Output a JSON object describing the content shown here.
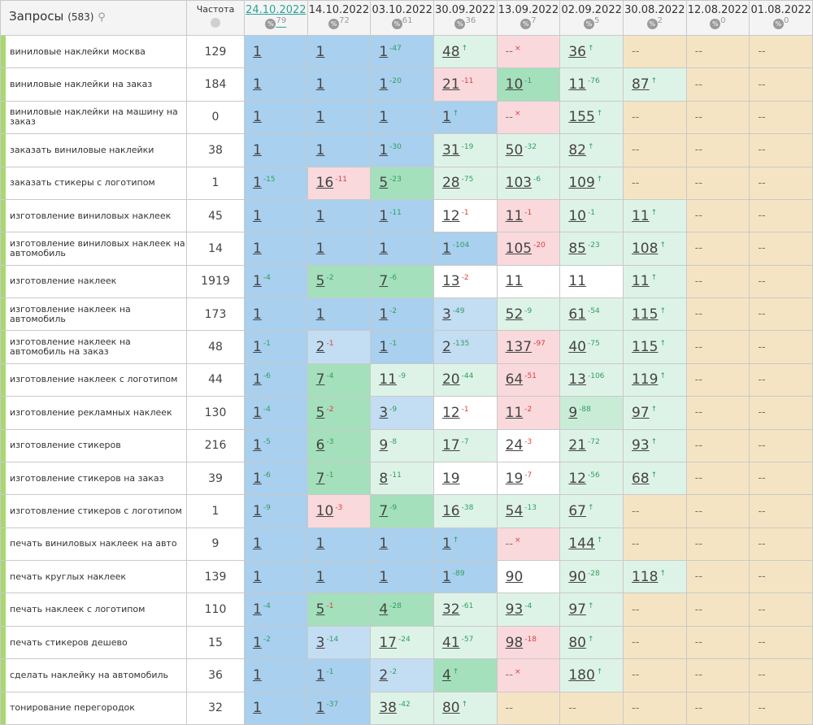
{
  "header": {
    "title": "Запросы",
    "count": "(583)",
    "freq_label": "Частота",
    "dates": [
      {
        "date": "24.10.2022",
        "count": 79
      },
      {
        "date": "14.10.2022",
        "count": 72
      },
      {
        "date": "03.10.2022",
        "count": 61
      },
      {
        "date": "30.09.2022",
        "count": 36
      },
      {
        "date": "13.09.2022",
        "count": 7
      },
      {
        "date": "02.09.2022",
        "count": 5
      },
      {
        "date": "30.08.2022",
        "count": 2
      },
      {
        "date": "12.08.2022",
        "count": 0
      },
      {
        "date": "01.08.2022",
        "count": 0
      }
    ]
  },
  "rows": [
    {
      "query": "виниловые наклейки москва",
      "freq": 129,
      "cells": [
        [
          "1",
          "#a9d0ee"
        ],
        [
          "1",
          "#a9d0ee"
        ],
        [
          "1",
          "#a9d0ee",
          "-47",
          "#2e9e63"
        ],
        [
          "48",
          "#def3e7",
          "↑",
          "#2e9e63"
        ],
        [
          "--",
          "#f9d9dc",
          "×",
          "#e03c3c"
        ],
        [
          "36",
          "#def3e7",
          "↑",
          "#2e9e63"
        ],
        [
          "--",
          "#f5e4c3"
        ],
        [
          "--",
          "#f5e4c3"
        ],
        [
          "--",
          "#f5e4c3"
        ]
      ]
    },
    {
      "query": "виниловые наклейки на заказ",
      "freq": 184,
      "cells": [
        [
          "1",
          "#a9d0ee"
        ],
        [
          "1",
          "#a9d0ee"
        ],
        [
          "1",
          "#a9d0ee",
          "-20",
          "#2e9e63"
        ],
        [
          "21",
          "#f9d9dc",
          "-11",
          "#e03c3c"
        ],
        [
          "10",
          "#a4e0bc",
          "-1",
          "#2e9e63"
        ],
        [
          "11",
          "#def3e7",
          "-76",
          "#2e9e63"
        ],
        [
          "87",
          "#def3e7",
          "↑",
          "#2e9e63"
        ],
        [
          "--",
          "#f5e4c3"
        ],
        [
          "--",
          "#f5e4c3"
        ]
      ]
    },
    {
      "query": "виниловые наклейки на машину на заказ",
      "freq": 0,
      "cells": [
        [
          "1",
          "#a9d0ee"
        ],
        [
          "1",
          "#a9d0ee"
        ],
        [
          "1",
          "#a9d0ee"
        ],
        [
          "1",
          "#a9d0ee",
          "↑",
          "#2e9e63"
        ],
        [
          "--",
          "#f9d9dc",
          "×",
          "#e03c3c"
        ],
        [
          "155",
          "#def3e7",
          "↑",
          "#2e9e63"
        ],
        [
          "--",
          "#f5e4c3"
        ],
        [
          "--",
          "#f5e4c3"
        ],
        [
          "--",
          "#f5e4c3"
        ]
      ]
    },
    {
      "query": "заказать виниловые наклейки",
      "freq": 38,
      "cells": [
        [
          "1",
          "#a9d0ee"
        ],
        [
          "1",
          "#a9d0ee"
        ],
        [
          "1",
          "#a9d0ee",
          "-30",
          "#2e9e63"
        ],
        [
          "31",
          "#def3e7",
          "-19",
          "#2e9e63"
        ],
        [
          "50",
          "#def3e7",
          "-32",
          "#2e9e63"
        ],
        [
          "82",
          "#def3e7",
          "↑",
          "#2e9e63"
        ],
        [
          "--",
          "#f5e4c3"
        ],
        [
          "--",
          "#f5e4c3"
        ],
        [
          "--",
          "#f5e4c3"
        ]
      ]
    },
    {
      "query": "заказать стикеры с логотипом",
      "freq": 1,
      "cells": [
        [
          "1",
          "#a9d0ee",
          "-15",
          "#2e9e63"
        ],
        [
          "16",
          "#f9d9dc",
          "-11",
          "#e03c3c"
        ],
        [
          "5",
          "#a4e0bc",
          "-23",
          "#2e9e63"
        ],
        [
          "28",
          "#def3e7",
          "-75",
          "#2e9e63"
        ],
        [
          "103",
          "#def3e7",
          "-6",
          "#2e9e63"
        ],
        [
          "109",
          "#def3e7",
          "↑",
          "#2e9e63"
        ],
        [
          "--",
          "#f5e4c3"
        ],
        [
          "--",
          "#f5e4c3"
        ],
        [
          "--",
          "#f5e4c3"
        ]
      ]
    },
    {
      "query": "изготовление виниловых наклеек",
      "freq": 45,
      "cells": [
        [
          "1",
          "#a9d0ee"
        ],
        [
          "1",
          "#a9d0ee"
        ],
        [
          "1",
          "#a9d0ee",
          "-11",
          "#2e9e63"
        ],
        [
          "12",
          "#ffffff",
          "-1",
          "#e03c3c"
        ],
        [
          "11",
          "#f9d9dc",
          "-1",
          "#e03c3c"
        ],
        [
          "10",
          "#def3e7",
          "-1",
          "#2e9e63"
        ],
        [
          "11",
          "#def3e7",
          "↑",
          "#2e9e63"
        ],
        [
          "--",
          "#f5e4c3"
        ],
        [
          "--",
          "#f5e4c3"
        ]
      ]
    },
    {
      "query": "изготовление виниловых наклеек на автомобиль",
      "freq": 14,
      "cells": [
        [
          "1",
          "#a9d0ee"
        ],
        [
          "1",
          "#a9d0ee"
        ],
        [
          "1",
          "#a9d0ee"
        ],
        [
          "1",
          "#a9d0ee",
          "-104",
          "#2e9e63"
        ],
        [
          "105",
          "#f9d9dc",
          "-20",
          "#e03c3c"
        ],
        [
          "85",
          "#def3e7",
          "-23",
          "#2e9e63"
        ],
        [
          "108",
          "#def3e7",
          "↑",
          "#2e9e63"
        ],
        [
          "--",
          "#f5e4c3"
        ],
        [
          "--",
          "#f5e4c3"
        ]
      ]
    },
    {
      "query": "изготовление наклеек",
      "freq": 1919,
      "cells": [
        [
          "1",
          "#a9d0ee",
          "-4",
          "#2e9e63"
        ],
        [
          "5",
          "#a4e0bc",
          "-2",
          "#2e9e63"
        ],
        [
          "7",
          "#a4e0bc",
          "-6",
          "#2e9e63"
        ],
        [
          "13",
          "#ffffff",
          "-2",
          "#e03c3c"
        ],
        [
          "11",
          "#ffffff"
        ],
        [
          "11",
          "#ffffff"
        ],
        [
          "11",
          "#def3e7",
          "↑",
          "#2e9e63"
        ],
        [
          "--",
          "#f5e4c3"
        ],
        [
          "--",
          "#f5e4c3"
        ]
      ]
    },
    {
      "query": "изготовление наклеек на автомобиль",
      "freq": 173,
      "cells": [
        [
          "1",
          "#a9d0ee"
        ],
        [
          "1",
          "#a9d0ee"
        ],
        [
          "1",
          "#a9d0ee",
          "-2",
          "#2e9e63"
        ],
        [
          "3",
          "#c3ddf3",
          "-49",
          "#2e9e63"
        ],
        [
          "52",
          "#def3e7",
          "-9",
          "#2e9e63"
        ],
        [
          "61",
          "#def3e7",
          "-54",
          "#2e9e63"
        ],
        [
          "115",
          "#def3e7",
          "↑",
          "#2e9e63"
        ],
        [
          "--",
          "#f5e4c3"
        ],
        [
          "--",
          "#f5e4c3"
        ]
      ]
    },
    {
      "query": "изготовление наклеек на автомобиль на заказ",
      "freq": 48,
      "cells": [
        [
          "1",
          "#a9d0ee",
          "-1",
          "#2e9e63"
        ],
        [
          "2",
          "#c3ddf3",
          "-1",
          "#e03c3c"
        ],
        [
          "1",
          "#a9d0ee",
          "-1",
          "#2e9e63"
        ],
        [
          "2",
          "#c3ddf3",
          "-135",
          "#2e9e63"
        ],
        [
          "137",
          "#f9d9dc",
          "-97",
          "#e03c3c"
        ],
        [
          "40",
          "#def3e7",
          "-75",
          "#2e9e63"
        ],
        [
          "115",
          "#def3e7",
          "↑",
          "#2e9e63"
        ],
        [
          "--",
          "#f5e4c3"
        ],
        [
          "--",
          "#f5e4c3"
        ]
      ]
    },
    {
      "query": "изготовление наклеек с логотипом",
      "freq": 44,
      "cells": [
        [
          "1",
          "#a9d0ee",
          "-6",
          "#2e9e63"
        ],
        [
          "7",
          "#a4e0bc",
          "-4",
          "#2e9e63"
        ],
        [
          "11",
          "#def3e7",
          "-9",
          "#2e9e63"
        ],
        [
          "20",
          "#def3e7",
          "-44",
          "#2e9e63"
        ],
        [
          "64",
          "#f9d9dc",
          "-51",
          "#e03c3c"
        ],
        [
          "13",
          "#def3e7",
          "-106",
          "#2e9e63"
        ],
        [
          "119",
          "#def3e7",
          "↑",
          "#2e9e63"
        ],
        [
          "--",
          "#f5e4c3"
        ],
        [
          "--",
          "#f5e4c3"
        ]
      ]
    },
    {
      "query": "изготовление рекламных наклеек",
      "freq": 130,
      "cells": [
        [
          "1",
          "#a9d0ee",
          "-4",
          "#2e9e63"
        ],
        [
          "5",
          "#a4e0bc",
          "-2",
          "#e03c3c"
        ],
        [
          "3",
          "#c3ddf3",
          "-9",
          "#2e9e63"
        ],
        [
          "12",
          "#ffffff",
          "-1",
          "#e03c3c"
        ],
        [
          "11",
          "#f9d9dc",
          "-2",
          "#e03c3c"
        ],
        [
          "9",
          "#c9ecd6",
          "-88",
          "#2e9e63"
        ],
        [
          "97",
          "#def3e7",
          "↑",
          "#2e9e63"
        ],
        [
          "--",
          "#f5e4c3"
        ],
        [
          "--",
          "#f5e4c3"
        ]
      ]
    },
    {
      "query": "изготовление стикеров",
      "freq": 216,
      "cells": [
        [
          "1",
          "#a9d0ee",
          "-5",
          "#2e9e63"
        ],
        [
          "6",
          "#a4e0bc",
          "-3",
          "#2e9e63"
        ],
        [
          "9",
          "#def3e7",
          "-8",
          "#2e9e63"
        ],
        [
          "17",
          "#def3e7",
          "-7",
          "#2e9e63"
        ],
        [
          "24",
          "#ffffff",
          "-3",
          "#e03c3c"
        ],
        [
          "21",
          "#def3e7",
          "-72",
          "#2e9e63"
        ],
        [
          "93",
          "#def3e7",
          "↑",
          "#2e9e63"
        ],
        [
          "--",
          "#f5e4c3"
        ],
        [
          "--",
          "#f5e4c3"
        ]
      ]
    },
    {
      "query": "изготовление стикеров на заказ",
      "freq": 39,
      "cells": [
        [
          "1",
          "#a9d0ee",
          "-6",
          "#2e9e63"
        ],
        [
          "7",
          "#a4e0bc",
          "-1",
          "#2e9e63"
        ],
        [
          "8",
          "#def3e7",
          "-11",
          "#2e9e63"
        ],
        [
          "19",
          "#ffffff"
        ],
        [
          "19",
          "#ffffff",
          "-7",
          "#e03c3c"
        ],
        [
          "12",
          "#def3e7",
          "-56",
          "#2e9e63"
        ],
        [
          "68",
          "#def3e7",
          "↑",
          "#2e9e63"
        ],
        [
          "--",
          "#f5e4c3"
        ],
        [
          "--",
          "#f5e4c3"
        ]
      ]
    },
    {
      "query": "изготовление стикеров с логотипом",
      "freq": 1,
      "cells": [
        [
          "1",
          "#a9d0ee",
          "-9",
          "#2e9e63"
        ],
        [
          "10",
          "#f9d9dc",
          "-3",
          "#e03c3c"
        ],
        [
          "7",
          "#a4e0bc",
          "-9",
          "#2e9e63"
        ],
        [
          "16",
          "#def3e7",
          "-38",
          "#2e9e63"
        ],
        [
          "54",
          "#def3e7",
          "-13",
          "#2e9e63"
        ],
        [
          "67",
          "#def3e7",
          "↑",
          "#2e9e63"
        ],
        [
          "--",
          "#f5e4c3"
        ],
        [
          "--",
          "#f5e4c3"
        ],
        [
          "--",
          "#f5e4c3"
        ]
      ]
    },
    {
      "query": "печать виниловых наклеек на авто",
      "freq": 9,
      "cells": [
        [
          "1",
          "#a9d0ee"
        ],
        [
          "1",
          "#a9d0ee"
        ],
        [
          "1",
          "#a9d0ee"
        ],
        [
          "1",
          "#a9d0ee",
          "↑",
          "#2e9e63"
        ],
        [
          "--",
          "#f9d9dc",
          "×",
          "#e03c3c"
        ],
        [
          "144",
          "#def3e7",
          "↑",
          "#2e9e63"
        ],
        [
          "--",
          "#f5e4c3"
        ],
        [
          "--",
          "#f5e4c3"
        ],
        [
          "--",
          "#f5e4c3"
        ]
      ]
    },
    {
      "query": "печать круглых наклеек",
      "freq": 139,
      "cells": [
        [
          "1",
          "#a9d0ee"
        ],
        [
          "1",
          "#a9d0ee"
        ],
        [
          "1",
          "#a9d0ee"
        ],
        [
          "1",
          "#a9d0ee",
          "-89",
          "#2e9e63"
        ],
        [
          "90",
          "#ffffff"
        ],
        [
          "90",
          "#def3e7",
          "-28",
          "#2e9e63"
        ],
        [
          "118",
          "#def3e7",
          "↑",
          "#2e9e63"
        ],
        [
          "--",
          "#f5e4c3"
        ],
        [
          "--",
          "#f5e4c3"
        ]
      ]
    },
    {
      "query": "печать наклеек с логотипом",
      "freq": 110,
      "cells": [
        [
          "1",
          "#a9d0ee",
          "-4",
          "#2e9e63"
        ],
        [
          "5",
          "#a4e0bc",
          "-1",
          "#e03c3c"
        ],
        [
          "4",
          "#a4e0bc",
          "-28",
          "#2e9e63"
        ],
        [
          "32",
          "#def3e7",
          "-61",
          "#2e9e63"
        ],
        [
          "93",
          "#def3e7",
          "-4",
          "#2e9e63"
        ],
        [
          "97",
          "#def3e7",
          "↑",
          "#2e9e63"
        ],
        [
          "--",
          "#f5e4c3"
        ],
        [
          "--",
          "#f5e4c3"
        ],
        [
          "--",
          "#f5e4c3"
        ]
      ]
    },
    {
      "query": "печать стикеров дешево",
      "freq": 15,
      "cells": [
        [
          "1",
          "#a9d0ee",
          "-2",
          "#2e9e63"
        ],
        [
          "3",
          "#c3ddf3",
          "-14",
          "#2e9e63"
        ],
        [
          "17",
          "#def3e7",
          "-24",
          "#2e9e63"
        ],
        [
          "41",
          "#def3e7",
          "-57",
          "#2e9e63"
        ],
        [
          "98",
          "#f9d9dc",
          "-18",
          "#e03c3c"
        ],
        [
          "80",
          "#def3e7",
          "↑",
          "#2e9e63"
        ],
        [
          "--",
          "#f5e4c3"
        ],
        [
          "--",
          "#f5e4c3"
        ],
        [
          "--",
          "#f5e4c3"
        ]
      ]
    },
    {
      "query": "сделать наклейку на автомобиль",
      "freq": 36,
      "cells": [
        [
          "1",
          "#a9d0ee"
        ],
        [
          "1",
          "#a9d0ee",
          "-1",
          "#2e9e63"
        ],
        [
          "2",
          "#c3ddf3",
          "-2",
          "#2e9e63"
        ],
        [
          "4",
          "#a4e0bc",
          "↑",
          "#2e9e63"
        ],
        [
          "--",
          "#f9d9dc",
          "×",
          "#e03c3c"
        ],
        [
          "180",
          "#def3e7",
          "↑",
          "#2e9e63"
        ],
        [
          "--",
          "#f5e4c3"
        ],
        [
          "--",
          "#f5e4c3"
        ],
        [
          "--",
          "#f5e4c3"
        ]
      ]
    },
    {
      "query": "тонирование перегородок",
      "freq": 32,
      "cells": [
        [
          "1",
          "#a9d0ee"
        ],
        [
          "1",
          "#a9d0ee",
          "-37",
          "#2e9e63"
        ],
        [
          "38",
          "#def3e7",
          "-42",
          "#2e9e63"
        ],
        [
          "80",
          "#def3e7",
          "↑",
          "#2e9e63"
        ],
        [
          "--",
          "#f5e4c3"
        ],
        [
          "--",
          "#f5e4c3"
        ],
        [
          "--",
          "#f5e4c3"
        ],
        [
          "--",
          "#f5e4c3"
        ],
        [
          "--",
          "#f5e4c3"
        ]
      ]
    }
  ]
}
